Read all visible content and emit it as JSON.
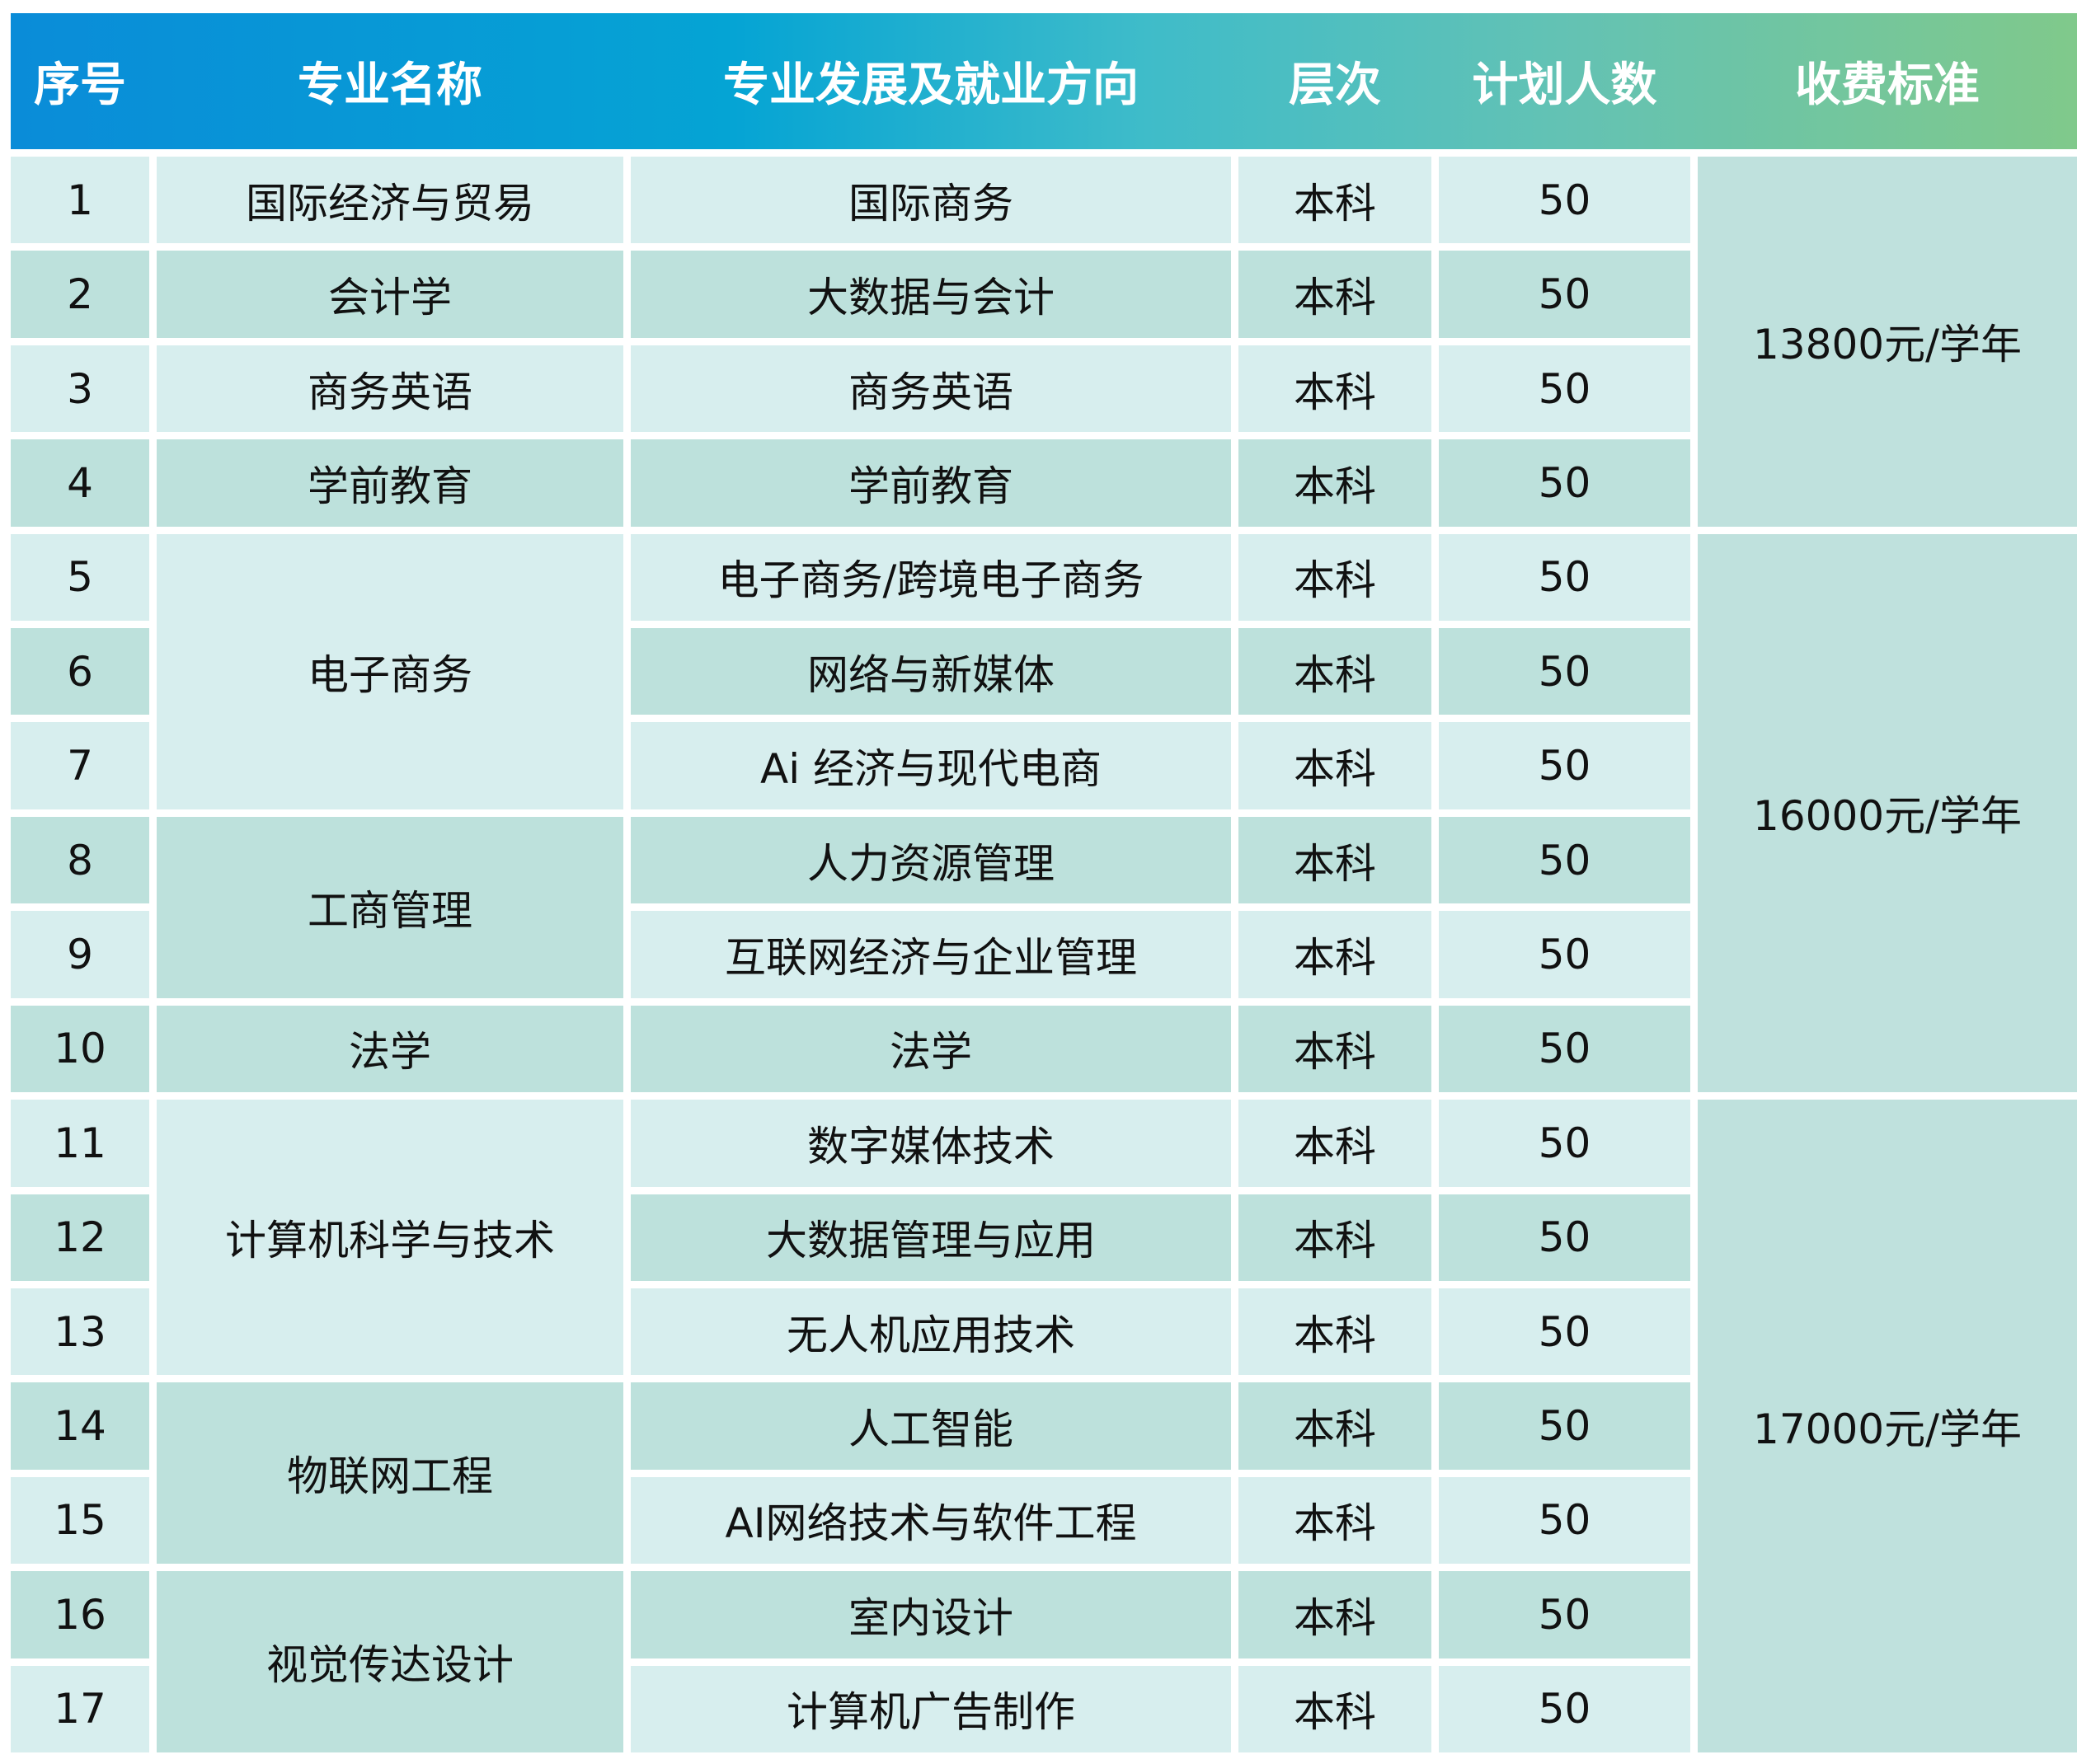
{
  "headers": [
    "序号",
    "专业名称",
    "专业发展及就业方向",
    "层次",
    "计划人数",
    "收费标准"
  ],
  "rows": [
    {
      "no": "1",
      "direction": "国际商务",
      "level": "本科",
      "count": "50"
    },
    {
      "no": "2",
      "direction": "大数据与会计",
      "level": "本科",
      "count": "50"
    },
    {
      "no": "3",
      "direction": "商务英语",
      "level": "本科",
      "count": "50"
    },
    {
      "no": "4",
      "direction": "学前教育",
      "level": "本科",
      "count": "50"
    },
    {
      "no": "5",
      "direction": "电子商务/跨境电子商务",
      "level": "本科",
      "count": "50"
    },
    {
      "no": "6",
      "direction": "网络与新媒体",
      "level": "本科",
      "count": "50"
    },
    {
      "no": "7",
      "direction": "Ai 经济与现代电商",
      "level": "本科",
      "count": "50"
    },
    {
      "no": "8",
      "direction": "人力资源管理",
      "level": "本科",
      "count": "50"
    },
    {
      "no": "9",
      "direction": "互联网经济与企业管理",
      "level": "本科",
      "count": "50"
    },
    {
      "no": "10",
      "direction": "法学",
      "level": "本科",
      "count": "50"
    },
    {
      "no": "11",
      "direction": "数字媒体技术",
      "level": "本科",
      "count": "50"
    },
    {
      "no": "12",
      "direction": "大数据管理与应用",
      "level": "本科",
      "count": "50"
    },
    {
      "no": "13",
      "direction": "无人机应用技术",
      "level": "本科",
      "count": "50"
    },
    {
      "no": "14",
      "direction": "人工智能",
      "level": "本科",
      "count": "50"
    },
    {
      "no": "15",
      "direction": "AI网络技术与软件工程",
      "level": "本科",
      "count": "50"
    },
    {
      "no": "16",
      "direction": "室内设计",
      "level": "本科",
      "count": "50"
    },
    {
      "no": "17",
      "direction": "计算机广告制作",
      "level": "本科",
      "count": "50"
    }
  ],
  "majors": [
    {
      "name": "国际经济与贸易",
      "from": 1,
      "to": 1
    },
    {
      "name": "会计学",
      "from": 2,
      "to": 2
    },
    {
      "name": "商务英语",
      "from": 3,
      "to": 3
    },
    {
      "name": "学前教育",
      "from": 4,
      "to": 4
    },
    {
      "name": "电子商务",
      "from": 5,
      "to": 7
    },
    {
      "name": "工商管理",
      "from": 8,
      "to": 9
    },
    {
      "name": "法学",
      "from": 10,
      "to": 10
    },
    {
      "name": "计算机科学与技术",
      "from": 11,
      "to": 13
    },
    {
      "name": "物联网工程",
      "from": 14,
      "to": 15
    },
    {
      "name": "视觉传达设计",
      "from": 16,
      "to": 17
    }
  ],
  "fees": [
    {
      "label": "13800元/学年",
      "from": 1,
      "to": 4
    },
    {
      "label": "16000元/学年",
      "from": 5,
      "to": 10
    },
    {
      "label": "17000元/学年",
      "from": 11,
      "to": 17
    }
  ],
  "colors": {
    "header_start": "#0a8cd8",
    "header_end": "#80c98b",
    "row_light": "#d7eeee",
    "row_dark": "#bde1dc"
  }
}
